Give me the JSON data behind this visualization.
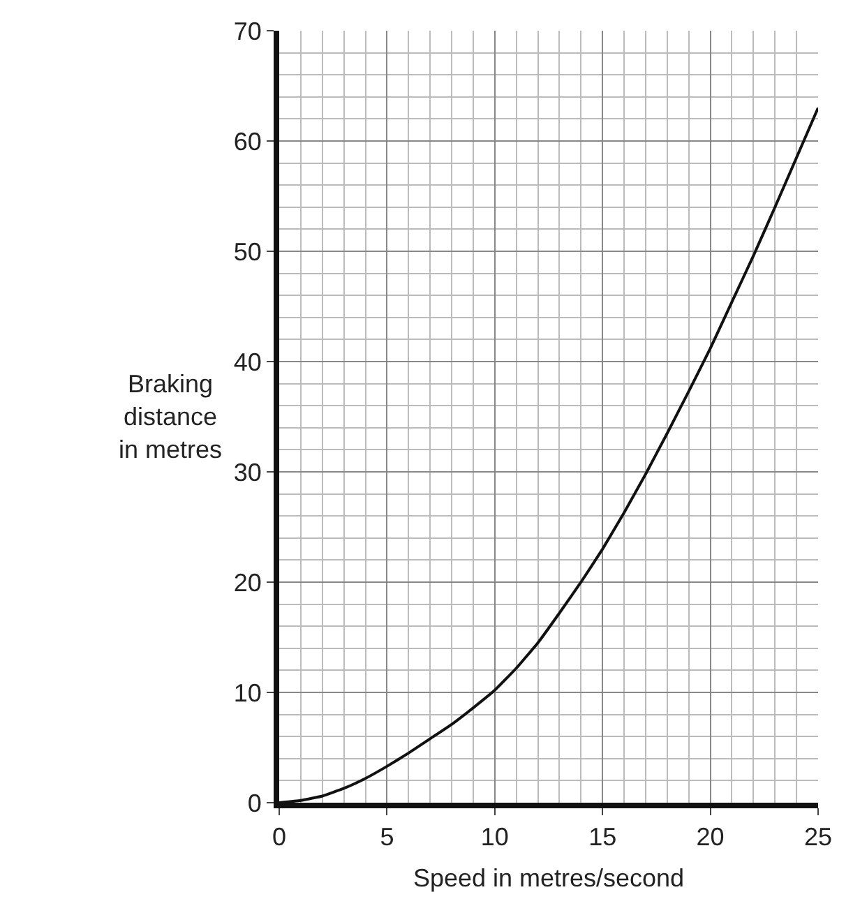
{
  "chart_data": {
    "type": "line",
    "xlabel": "Speed in metres/second",
    "ylabel": "Braking\ndistance\nin metres",
    "x": [
      0,
      1,
      2,
      3,
      4,
      5,
      6,
      7,
      8,
      9,
      10,
      11,
      12,
      13,
      14,
      15,
      16,
      17,
      18,
      19,
      20,
      21,
      22,
      23,
      24,
      25
    ],
    "series": [
      {
        "color": "#111111",
        "values": [
          0,
          0.2,
          0.6,
          1.3,
          2.2,
          3.3,
          4.5,
          5.8,
          7.1,
          8.6,
          10.2,
          12.2,
          14.5,
          17.2,
          20,
          23,
          26.3,
          29.8,
          33.5,
          37.3,
          41.2,
          45.4,
          49.6,
          54,
          58.5,
          63
        ]
      }
    ],
    "xlim": [
      0,
      25
    ],
    "ylim": [
      0,
      70
    ],
    "xticks": [
      0,
      5,
      10,
      15,
      20,
      25
    ],
    "yticks": [
      0,
      10,
      20,
      30,
      40,
      50,
      60,
      70
    ],
    "grid": true,
    "legend": false,
    "marker": "none",
    "line_style": "solid"
  }
}
